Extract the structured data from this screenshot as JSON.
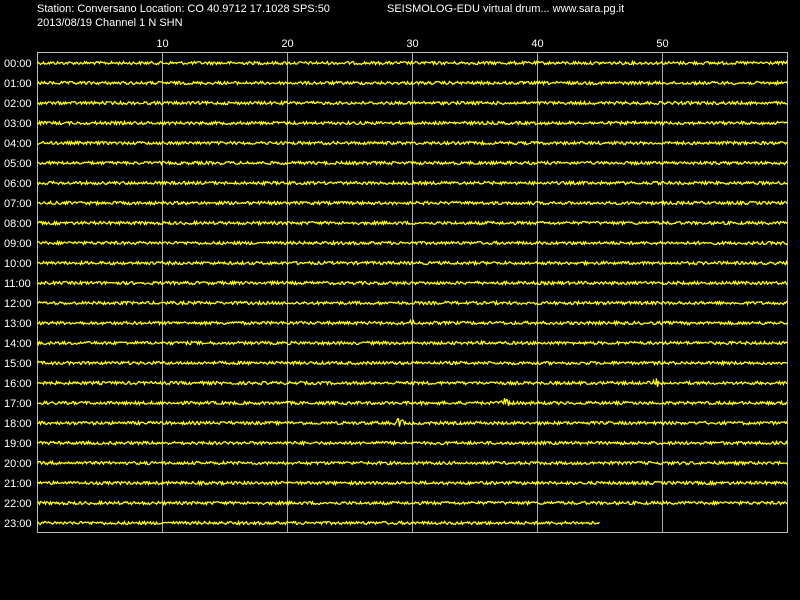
{
  "header": {
    "station": "Station: Conversano Location: CO 40.9712 17.1028 SPS:50",
    "program": "SEISMOLOG-EDU virtual drum... www.sara.pg.it",
    "date_channel": "2013/08/19  Channel 1 N SHN"
  },
  "axis": {
    "xlim": [
      0,
      60
    ],
    "xticks": [
      10,
      20,
      30,
      40,
      50
    ]
  },
  "rows": [
    "00:00",
    "01:00",
    "02:00",
    "03:00",
    "04:00",
    "05:00",
    "06:00",
    "07:00",
    "08:00",
    "09:00",
    "10:00",
    "11:00",
    "12:00",
    "13:00",
    "14:00",
    "15:00",
    "16:00",
    "17:00",
    "18:00",
    "19:00",
    "20:00",
    "21:00",
    "22:00",
    "23:00"
  ]
}
